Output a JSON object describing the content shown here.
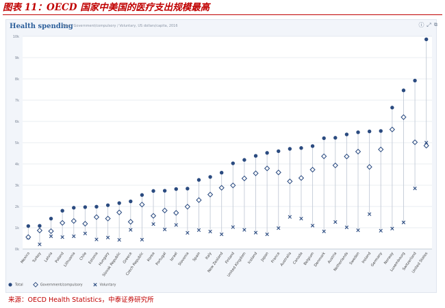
{
  "figure_title": "图表 11：OECD 国家中美国的医疗支出规模最高",
  "source_note": "来源：OECD Health Statistics，中泰证券研究所",
  "panel": {
    "title": "Health spending",
    "subtitle": "Total / Government/compulsory / Voluntary, US dollars/capita, 2016",
    "icons": [
      "info-icon",
      "expand-icon",
      "share-icon"
    ]
  },
  "colors": {
    "title_red": "#c00000",
    "series_navy": "#2b4b80",
    "stem_gray": "#c3cad6",
    "grid": "#d4dbe6"
  },
  "chart_data": {
    "type": "scatter",
    "title": "Health spending",
    "subtitle": "Total / Government/compulsory / Voluntary, US dollars/capita, 2016",
    "xlabel": "",
    "ylabel": "",
    "ylim": [
      0,
      10000
    ],
    "grid": true,
    "legend_position": "bottom-left",
    "y_ticks": [
      {
        "value": 0,
        "label": "0k"
      },
      {
        "value": 1000,
        "label": "1k"
      },
      {
        "value": 2000,
        "label": "2k"
      },
      {
        "value": 3000,
        "label": "3k"
      },
      {
        "value": 4000,
        "label": "4k"
      },
      {
        "value": 5000,
        "label": "5k"
      },
      {
        "value": 6000,
        "label": "6k"
      },
      {
        "value": 7000,
        "label": "7k"
      },
      {
        "value": 8000,
        "label": "8k"
      },
      {
        "value": 9000,
        "label": "9k"
      },
      {
        "value": 10000,
        "label": "10k"
      }
    ],
    "categories": [
      "Mexico",
      "Turkey",
      "Latvia",
      "Poland",
      "Lithuania",
      "Chile",
      "Estonia",
      "Hungary",
      "Slovak Republic",
      "Greece",
      "Czech Republic",
      "Korea",
      "Portugal",
      "Israel",
      "Slovenia",
      "Spain",
      "Italy",
      "New Zealand",
      "Finland",
      "United Kingdom",
      "Iceland",
      "Japan",
      "France",
      "Australia",
      "Canada",
      "Belgium",
      "Denmark",
      "Austria",
      "Netherlands",
      "Sweden",
      "Ireland",
      "Germany",
      "Norway",
      "Luxembourg",
      "Switzerland",
      "United States"
    ],
    "series": [
      {
        "name": "Total",
        "marker": "circle",
        "values": [
          1080,
          1090,
          1430,
          1800,
          1940,
          1970,
          1990,
          2060,
          2160,
          2240,
          2540,
          2730,
          2740,
          2820,
          2840,
          3250,
          3390,
          3590,
          4030,
          4190,
          4380,
          4520,
          4600,
          4710,
          4750,
          4840,
          5210,
          5230,
          5390,
          5490,
          5530,
          5550,
          6650,
          7460,
          7920,
          9860
        ]
      },
      {
        "name": "Government/compulsory",
        "marker": "diamond",
        "values": [
          560,
          870,
          840,
          1230,
          1320,
          1190,
          1500,
          1430,
          1720,
          1280,
          2090,
          1560,
          1810,
          1700,
          1990,
          2300,
          2560,
          2880,
          2990,
          3320,
          3560,
          3790,
          3600,
          3180,
          3340,
          3730,
          4360,
          3930,
          4350,
          4580,
          3860,
          4680,
          5620,
          6200,
          5020,
          4860
        ]
      },
      {
        "name": "Voluntary",
        "marker": "x",
        "values": [
          540,
          220,
          600,
          560,
          600,
          730,
          450,
          540,
          430,
          900,
          440,
          1170,
          920,
          1130,
          760,
          890,
          820,
          690,
          1030,
          900,
          770,
          690,
          980,
          1510,
          1430,
          1100,
          830,
          1270,
          1020,
          880,
          1640,
          860,
          960,
          1250,
          2850,
          5000
        ]
      }
    ]
  }
}
